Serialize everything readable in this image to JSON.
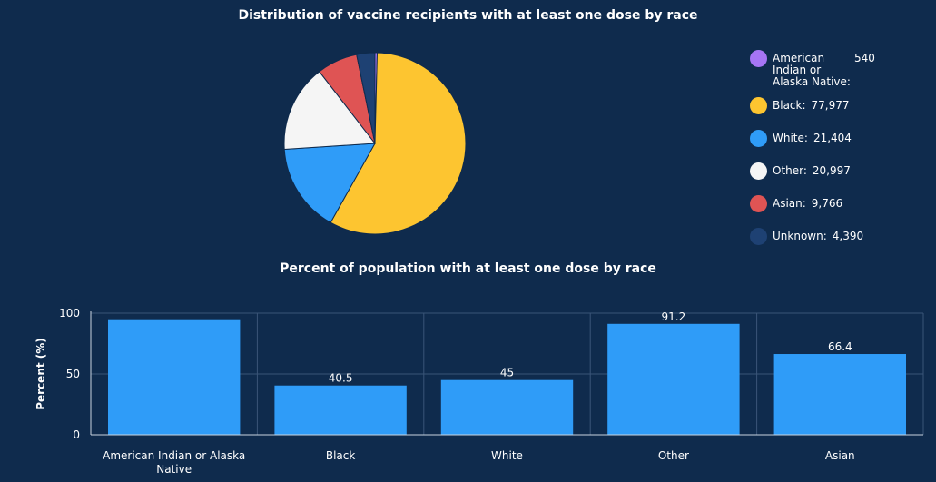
{
  "chart_data": [
    {
      "type": "pie",
      "title": "Distribution of vaccine recipients with at least one dose by race",
      "slices": [
        {
          "label": "American Indian or Alaska Native:",
          "value": 540,
          "value_label": "540",
          "color": "#a675f5"
        },
        {
          "label": "Black:",
          "value": 77977,
          "value_label": "77,977",
          "color": "#fdc530"
        },
        {
          "label": "White:",
          "value": 21404,
          "value_label": "21,404",
          "color": "#2f9cf8"
        },
        {
          "label": "Other:",
          "value": 20997,
          "value_label": "20,997",
          "color": "#f5f5f5"
        },
        {
          "label": "Asian:",
          "value": 9766,
          "value_label": "9,766",
          "color": "#df5454"
        },
        {
          "label": "Unknown:",
          "value": 4390,
          "value_label": "4,390",
          "color": "#1e4173"
        }
      ],
      "legend_position": "right"
    },
    {
      "type": "bar",
      "title": "Percent of population with at least one dose by race",
      "ylabel": "Percent (%)",
      "xlabel": "",
      "categories": [
        "American Indian or Alaska Native",
        "Black",
        "White",
        "Other",
        "Asian"
      ],
      "values": [
        95,
        40.5,
        45,
        91.2,
        66.4
      ],
      "value_labels": [
        "",
        "40.5",
        "45",
        "91.2",
        "66.4"
      ],
      "ylim": [
        0,
        100
      ],
      "yticks": [
        "0",
        "50",
        "100"
      ],
      "grid": true,
      "bar_color": "#2f9cf8"
    }
  ],
  "colors": {
    "background": "#0f2b4d",
    "grid": "#3a5578",
    "axis": "#c9d3df"
  }
}
